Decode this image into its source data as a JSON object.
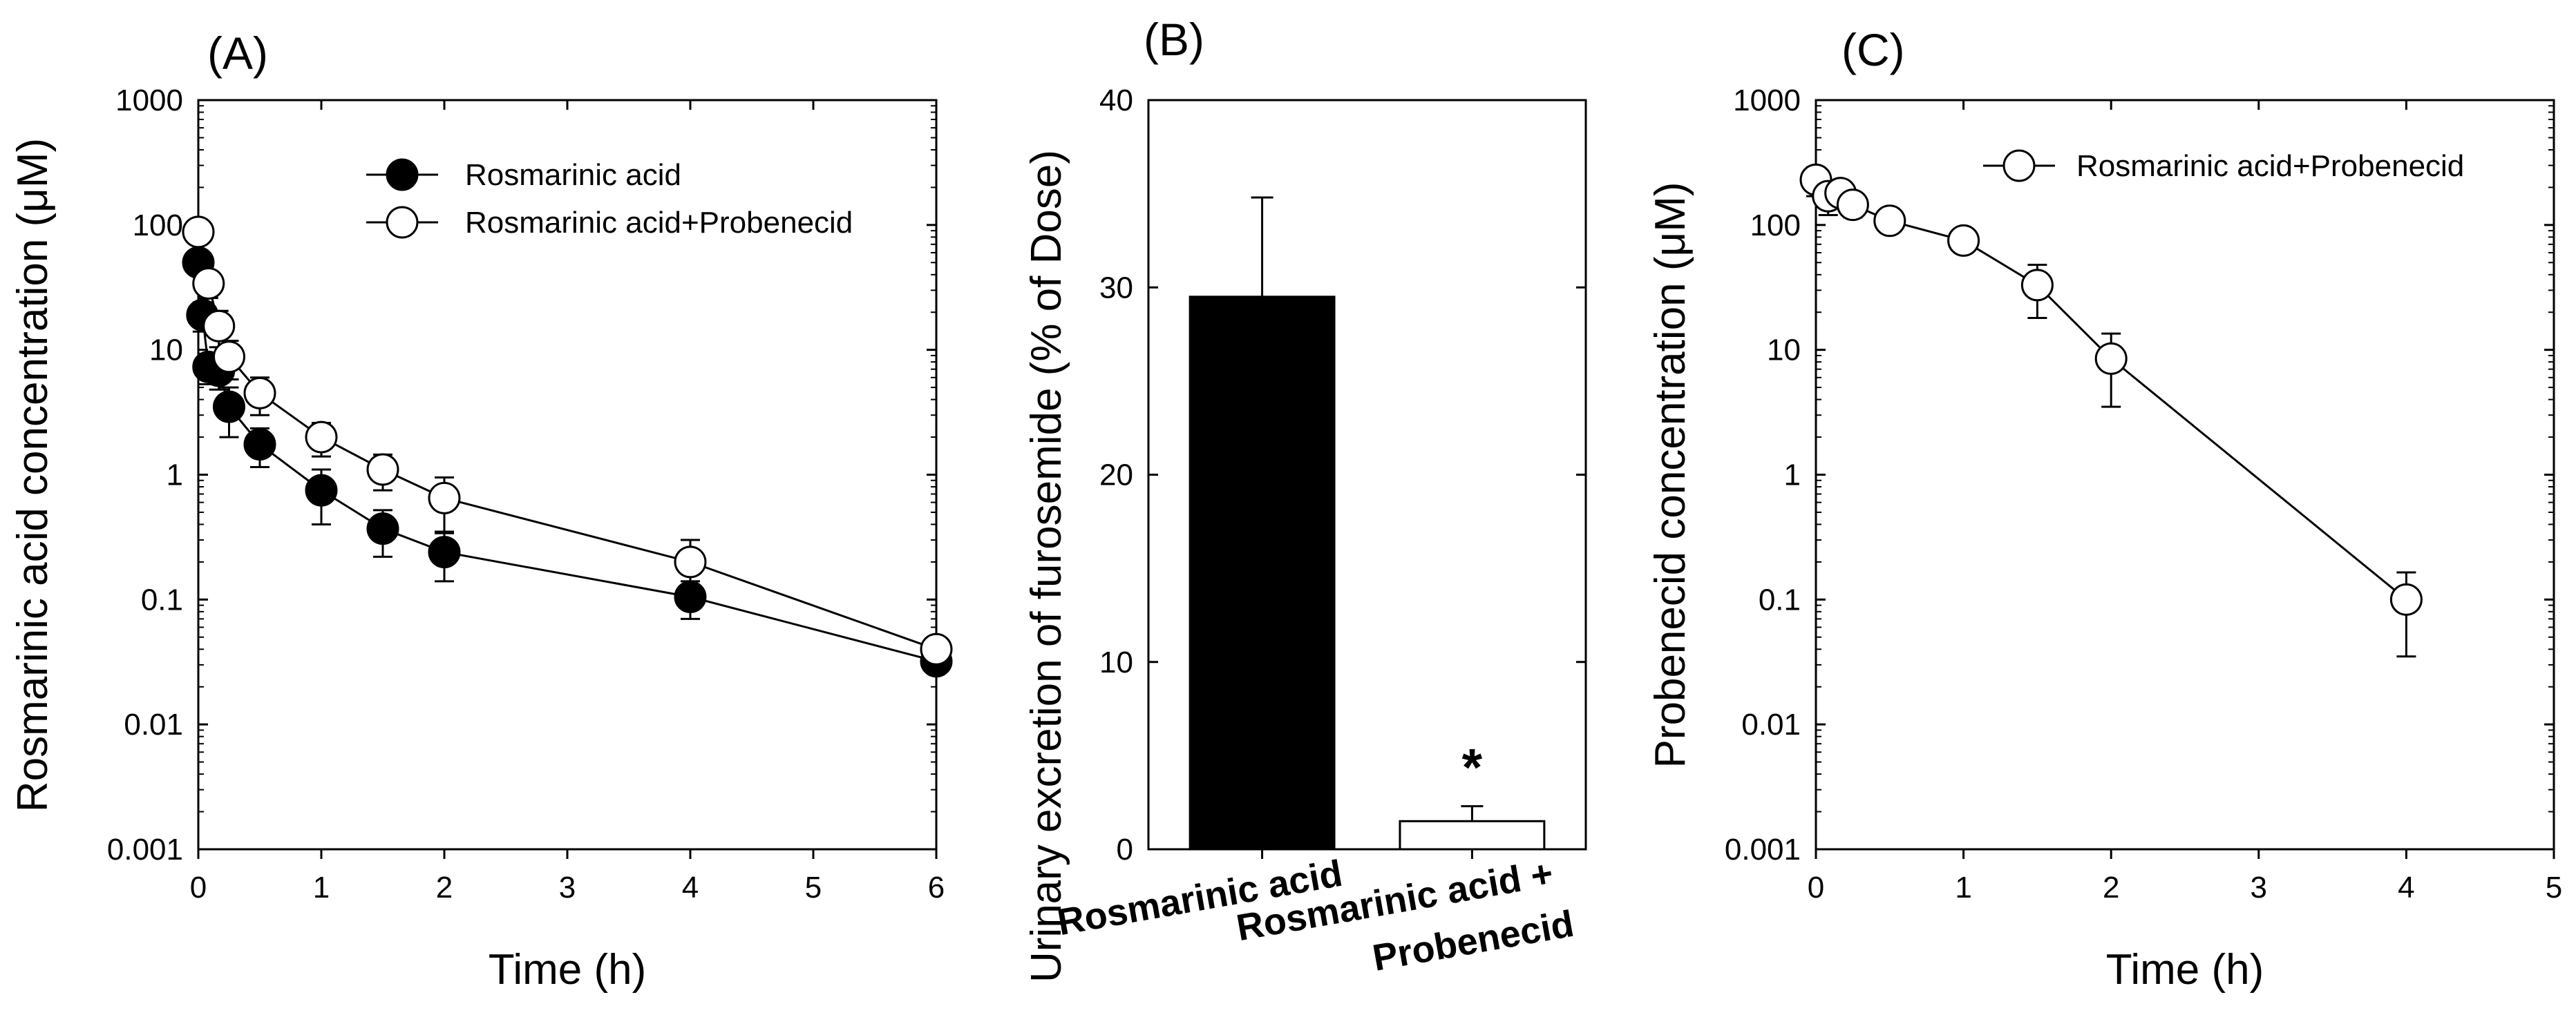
{
  "colors": {
    "axis": "#000000",
    "filled_marker": "#000000",
    "open_marker": "#ffffff",
    "bar_fill_1": "#000000",
    "bar_fill_2": "#ffffff"
  },
  "chart_data": [
    {
      "type": "scatter",
      "panel_label": "(A)",
      "xlabel": "Time (h)",
      "ylabel": "Rosmarinic acid concentration (μM)",
      "yscale": "log",
      "xlim": [
        0,
        6
      ],
      "ylim": [
        0.001,
        1000
      ],
      "x_ticks": [
        "0",
        "1",
        "2",
        "3",
        "4",
        "5",
        "6"
      ],
      "y_ticks": [
        "0.001",
        "0.01",
        "0.1",
        "1",
        "10",
        "100",
        "1000"
      ],
      "legend_position": "top-right",
      "series": [
        {
          "name": "Rosmarinic acid",
          "marker": "filled-circle",
          "x": [
            0.0,
            0.033,
            0.083,
            0.167,
            0.25,
            0.5,
            1.0,
            1.5,
            2.0,
            4.0,
            6.0
          ],
          "y": [
            50,
            19,
            7.3,
            6.8,
            3.5,
            1.75,
            0.75,
            0.37,
            0.24,
            0.105,
            0.032
          ],
          "err": [
            10,
            5,
            2,
            2,
            1.5,
            0.6,
            0.35,
            0.15,
            0.1,
            0.035,
            0.005
          ]
        },
        {
          "name": "Rosmarinic acid+Probenecid",
          "marker": "open-circle",
          "x": [
            0.0,
            0.083,
            0.167,
            0.25,
            0.5,
            1.0,
            1.5,
            2.0,
            4.0,
            6.0
          ],
          "y": [
            88,
            34,
            15.5,
            8.8,
            4.5,
            2.0,
            1.1,
            0.65,
            0.2,
            0.04
          ],
          "err": [
            15,
            8,
            5,
            3,
            1.5,
            0.6,
            0.35,
            0.3,
            0.1,
            0.005
          ]
        }
      ]
    },
    {
      "type": "bar",
      "panel_label": "(B)",
      "xlabel": "",
      "ylabel": "Urinary excretion of furosemide (% of Dose)",
      "ylim": [
        0,
        40
      ],
      "y_ticks": [
        "0",
        "10",
        "20",
        "30",
        "40"
      ],
      "categories": [
        {
          "line1": "Rosmarinic acid",
          "line2": ""
        },
        {
          "line1": "Rosmarinic acid +",
          "line2": "Probenecid"
        }
      ],
      "values": [
        29.5,
        1.5
      ],
      "errors": [
        5.3,
        0.8
      ],
      "annotation": "*"
    },
    {
      "type": "scatter",
      "panel_label": "(C)",
      "xlabel": "Time (h)",
      "ylabel": "Probenecid concentration (μM)",
      "yscale": "log",
      "xlim": [
        0,
        5
      ],
      "ylim": [
        0.001,
        1000
      ],
      "x_ticks": [
        "0",
        "1",
        "2",
        "3",
        "4",
        "5"
      ],
      "y_ticks": [
        "0.001",
        "0.01",
        "0.1",
        "1",
        "10",
        "100",
        "1000"
      ],
      "legend_position": "top-right",
      "series": [
        {
          "name": "Rosmarinic acid+Probenecid",
          "marker": "open-circle",
          "x": [
            0.0,
            0.083,
            0.167,
            0.25,
            0.5,
            1.0,
            1.5,
            2.0,
            4.0
          ],
          "y": [
            230,
            170,
            180,
            145,
            108,
            75,
            33,
            8.5,
            0.1
          ],
          "err": [
            60,
            50,
            40,
            30,
            15,
            10,
            15,
            5,
            0.065
          ]
        }
      ]
    }
  ]
}
